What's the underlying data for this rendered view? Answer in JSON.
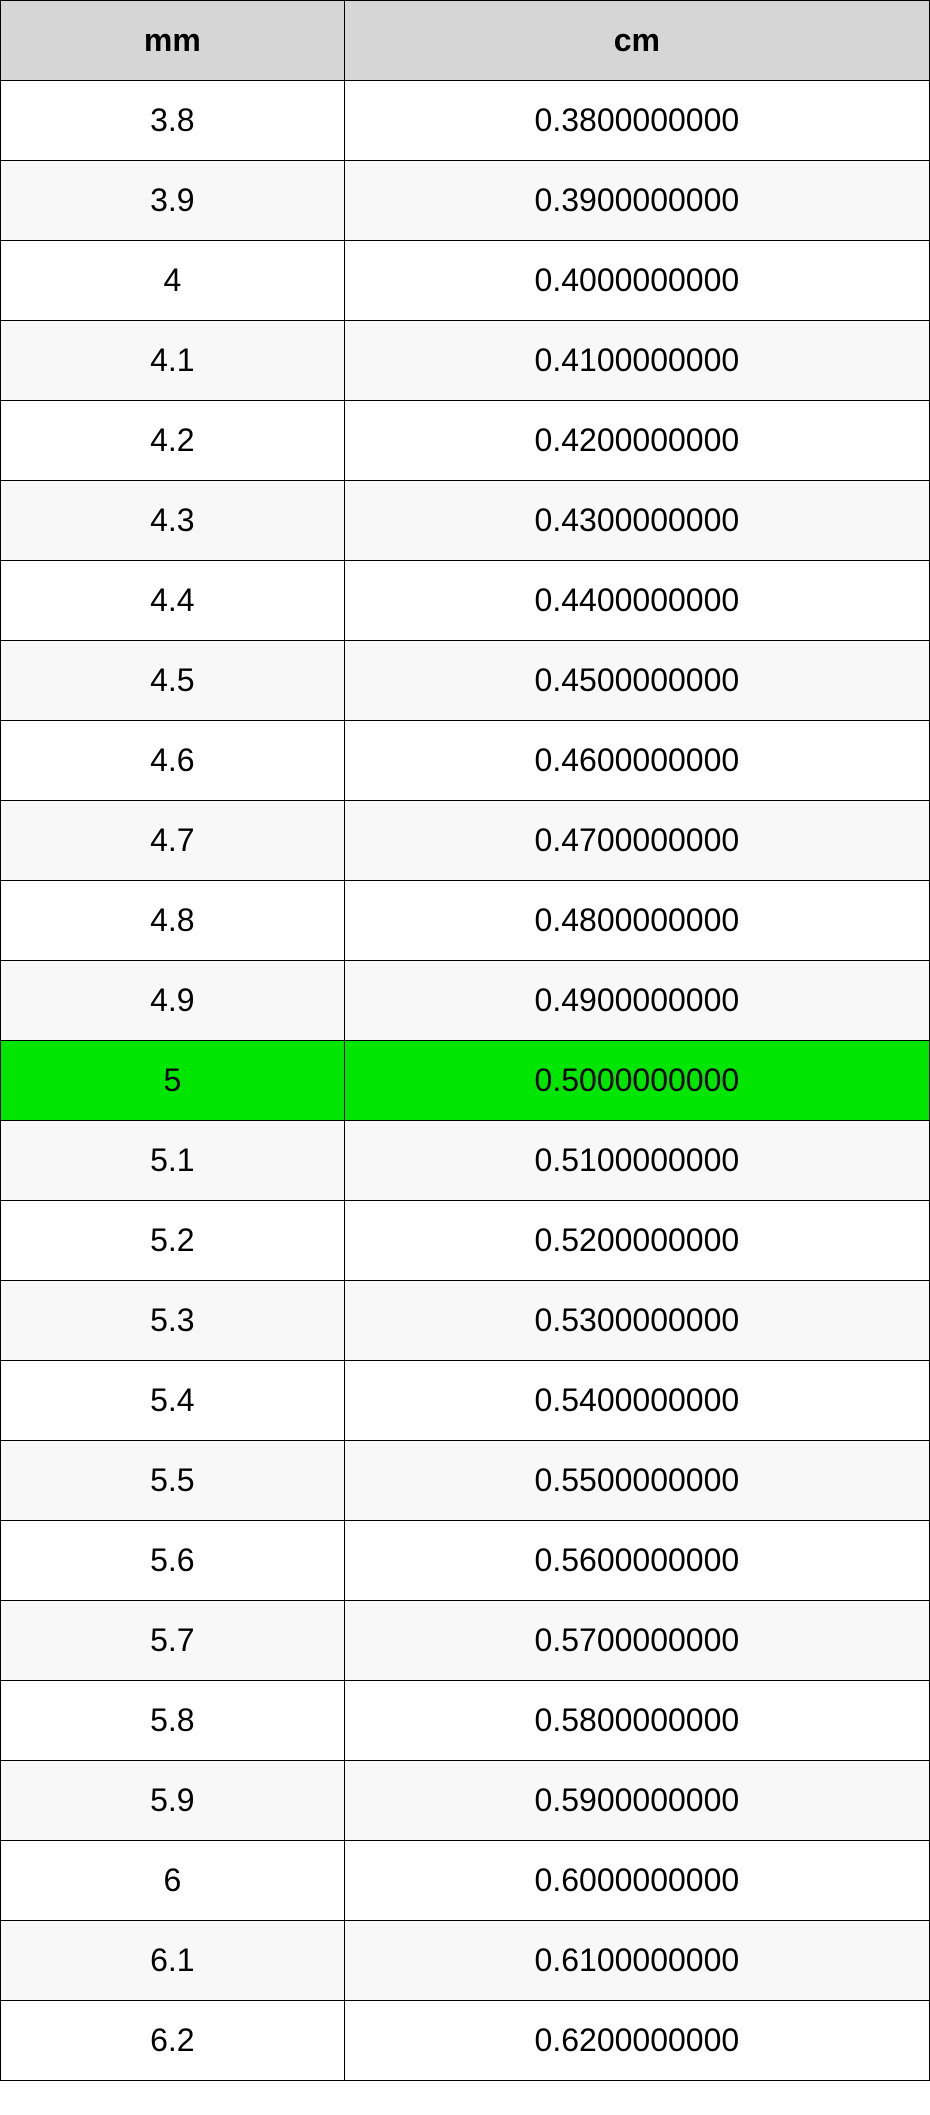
{
  "table": {
    "columns": [
      "mm",
      "cm"
    ],
    "header_background": "#d6d6d6",
    "header_text_color": "#000000",
    "border_color": "#000000",
    "row_odd_background": "#ffffff",
    "row_even_background": "#f8f8f8",
    "highlight_background": "#00e600",
    "cell_text_color": "#000000",
    "font_size_pt": 24,
    "column_widths_pct": [
      37,
      63
    ],
    "rows": [
      {
        "mm": "3.8",
        "cm": "0.3800000000",
        "highlight": false
      },
      {
        "mm": "3.9",
        "cm": "0.3900000000",
        "highlight": false
      },
      {
        "mm": "4",
        "cm": "0.4000000000",
        "highlight": false
      },
      {
        "mm": "4.1",
        "cm": "0.4100000000",
        "highlight": false
      },
      {
        "mm": "4.2",
        "cm": "0.4200000000",
        "highlight": false
      },
      {
        "mm": "4.3",
        "cm": "0.4300000000",
        "highlight": false
      },
      {
        "mm": "4.4",
        "cm": "0.4400000000",
        "highlight": false
      },
      {
        "mm": "4.5",
        "cm": "0.4500000000",
        "highlight": false
      },
      {
        "mm": "4.6",
        "cm": "0.4600000000",
        "highlight": false
      },
      {
        "mm": "4.7",
        "cm": "0.4700000000",
        "highlight": false
      },
      {
        "mm": "4.8",
        "cm": "0.4800000000",
        "highlight": false
      },
      {
        "mm": "4.9",
        "cm": "0.4900000000",
        "highlight": false
      },
      {
        "mm": "5",
        "cm": "0.5000000000",
        "highlight": true
      },
      {
        "mm": "5.1",
        "cm": "0.5100000000",
        "highlight": false
      },
      {
        "mm": "5.2",
        "cm": "0.5200000000",
        "highlight": false
      },
      {
        "mm": "5.3",
        "cm": "0.5300000000",
        "highlight": false
      },
      {
        "mm": "5.4",
        "cm": "0.5400000000",
        "highlight": false
      },
      {
        "mm": "5.5",
        "cm": "0.5500000000",
        "highlight": false
      },
      {
        "mm": "5.6",
        "cm": "0.5600000000",
        "highlight": false
      },
      {
        "mm": "5.7",
        "cm": "0.5700000000",
        "highlight": false
      },
      {
        "mm": "5.8",
        "cm": "0.5800000000",
        "highlight": false
      },
      {
        "mm": "5.9",
        "cm": "0.5900000000",
        "highlight": false
      },
      {
        "mm": "6",
        "cm": "0.6000000000",
        "highlight": false
      },
      {
        "mm": "6.1",
        "cm": "0.6100000000",
        "highlight": false
      },
      {
        "mm": "6.2",
        "cm": "0.6200000000",
        "highlight": false
      }
    ]
  }
}
